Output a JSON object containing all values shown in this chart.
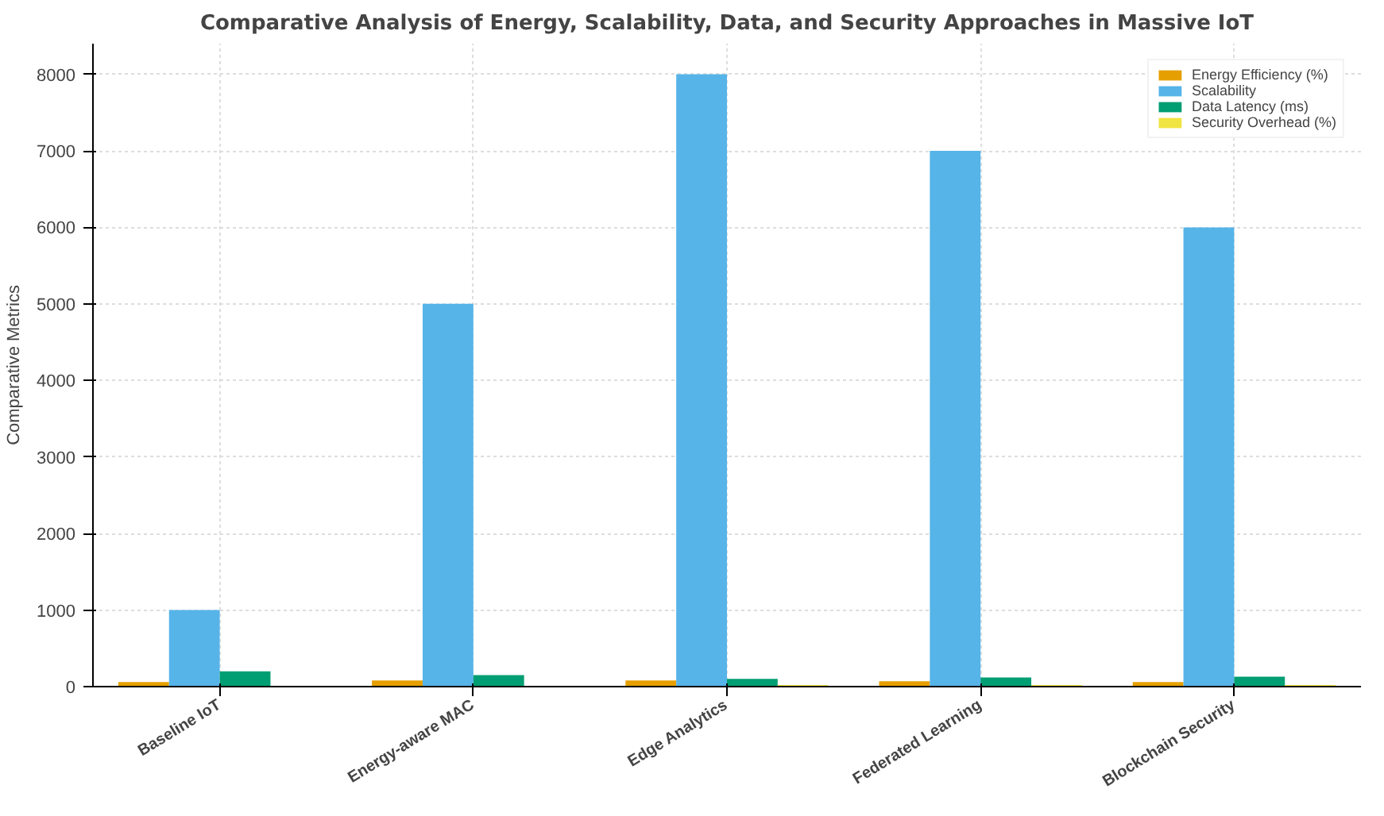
{
  "chart_data": {
    "type": "bar",
    "title": "Comparative Analysis of Energy, Scalability, Data, and Security Approaches in Massive IoT",
    "ylabel": "Comparative Metrics",
    "categories": [
      "Baseline IoT",
      "Energy-aware MAC",
      "Edge Analytics",
      "Federated Learning",
      "Blockchain Security"
    ],
    "series": [
      {
        "name": "Energy Efficiency (%)",
        "color": "#e69f00",
        "values": [
          60,
          80,
          80,
          70,
          60
        ]
      },
      {
        "name": "Scalability",
        "color": "#56b4e9",
        "values": [
          1000,
          5000,
          8000,
          7000,
          6000
        ]
      },
      {
        "name": "Data Latency (ms)",
        "color": "#009e73",
        "values": [
          200,
          150,
          100,
          120,
          130
        ]
      },
      {
        "name": "Security Overhead (%)",
        "color": "#f0e442",
        "values": [
          null,
          null,
          20,
          20,
          20
        ]
      }
    ],
    "ylim": [
      0,
      8400
    ],
    "yticks": [
      0,
      1000,
      2000,
      3000,
      4000,
      5000,
      6000,
      7000,
      8000
    ],
    "grid": true,
    "legend": "top right"
  }
}
